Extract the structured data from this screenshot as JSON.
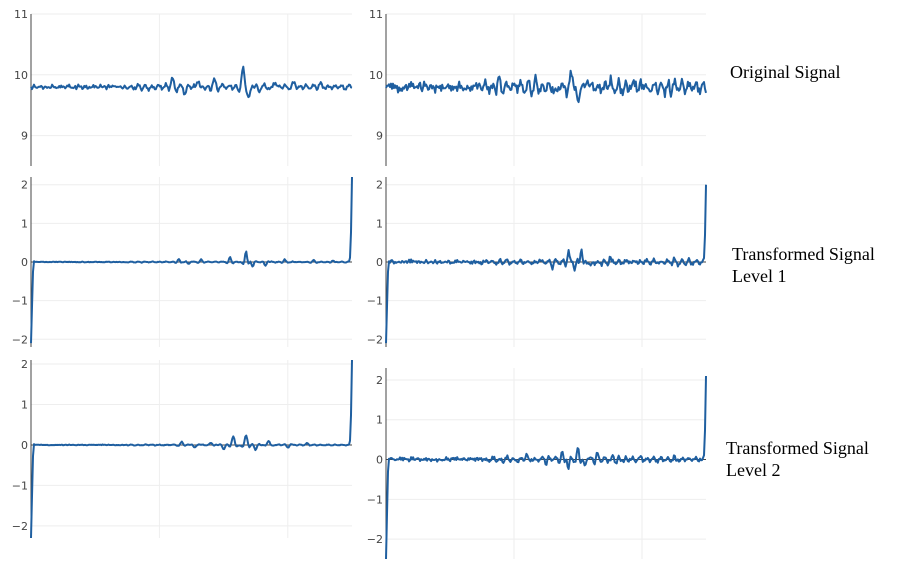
{
  "labels": {
    "row1": [
      "Original Signal"
    ],
    "row2": [
      "Transformed Signal",
      "Level 1"
    ],
    "row3": [
      "Transformed Signal",
      "Level 2"
    ]
  },
  "colors": {
    "series": "#1f5fa0",
    "grid": "#eeeeee",
    "axis": "#444444"
  },
  "chart_data": [
    {
      "id": "orig-left",
      "type": "line",
      "ylim": [
        8.5,
        11
      ],
      "yticks": [
        9,
        10,
        11
      ],
      "grid": true,
      "baseline": 9.8,
      "noise": 0.04,
      "events": [
        [
          0.44,
          0.15,
          0.01
        ],
        [
          0.48,
          -0.1,
          0.01
        ],
        [
          0.52,
          0.1,
          0.01
        ],
        [
          0.57,
          0.12,
          0.01
        ],
        [
          0.66,
          0.3,
          0.012
        ],
        [
          0.68,
          -0.15,
          0.01
        ],
        [
          0.71,
          -0.1,
          0.01
        ],
        [
          0.76,
          0.08,
          0.01
        ],
        [
          0.82,
          0.06,
          0.01
        ],
        [
          0.9,
          0.05,
          0.01
        ]
      ],
      "x": []
    },
    {
      "id": "orig-right",
      "type": "line",
      "ylim": [
        8.5,
        11
      ],
      "yticks": [
        9,
        10,
        11
      ],
      "grid": true,
      "baseline": 9.8,
      "noise": 0.09,
      "events": [
        [
          0.35,
          0.1,
          0.01
        ],
        [
          0.47,
          0.12,
          0.01
        ],
        [
          0.53,
          -0.15,
          0.01
        ],
        [
          0.58,
          0.22,
          0.01
        ],
        [
          0.6,
          -0.25,
          0.01
        ],
        [
          0.63,
          0.15,
          0.01
        ],
        [
          0.7,
          0.12,
          0.01
        ],
        [
          0.78,
          0.08,
          0.01
        ],
        [
          0.9,
          0.06,
          0.01
        ]
      ],
      "x": []
    },
    {
      "id": "lvl1-left",
      "type": "line",
      "ylim": [
        -2.2,
        2.2
      ],
      "yticks": [
        -2,
        -1,
        0,
        1,
        2
      ],
      "grid": true,
      "baseline": 0,
      "noise": 0.01,
      "start": -2.1,
      "end": 2.2,
      "events": [
        [
          0.46,
          0.08,
          0.008
        ],
        [
          0.49,
          -0.06,
          0.008
        ],
        [
          0.53,
          0.06,
          0.008
        ],
        [
          0.62,
          0.12,
          0.008
        ],
        [
          0.67,
          0.28,
          0.008
        ],
        [
          0.69,
          -0.12,
          0.008
        ],
        [
          0.73,
          -0.1,
          0.008
        ],
        [
          0.79,
          0.06,
          0.008
        ],
        [
          0.88,
          0.05,
          0.008
        ],
        [
          0.94,
          0.04,
          0.008
        ]
      ],
      "x": []
    },
    {
      "id": "lvl1-right",
      "type": "line",
      "ylim": [
        -2.2,
        2.2
      ],
      "yticks": [
        -2,
        -1,
        0,
        1,
        2
      ],
      "grid": true,
      "baseline": 0,
      "noise": 0.06,
      "start": -2.1,
      "end": 2.0,
      "events": [
        [
          0.48,
          0.1,
          0.008
        ],
        [
          0.52,
          -0.12,
          0.008
        ],
        [
          0.57,
          0.25,
          0.008
        ],
        [
          0.59,
          -0.2,
          0.008
        ],
        [
          0.61,
          0.32,
          0.008
        ],
        [
          0.64,
          -0.15,
          0.008
        ],
        [
          0.7,
          0.1,
          0.008
        ],
        [
          0.78,
          0.08,
          0.008
        ],
        [
          0.9,
          0.06,
          0.008
        ]
      ],
      "x": []
    },
    {
      "id": "lvl2-left",
      "type": "line",
      "ylim": [
        -2.3,
        2.1
      ],
      "yticks": [
        -2,
        -1,
        0,
        1,
        2
      ],
      "grid": true,
      "baseline": 0,
      "noise": 0.01,
      "start": -2.3,
      "end": 2.1,
      "events": [
        [
          0.47,
          0.08,
          0.01
        ],
        [
          0.51,
          -0.07,
          0.01
        ],
        [
          0.56,
          0.06,
          0.01
        ],
        [
          0.6,
          -0.12,
          0.01
        ],
        [
          0.63,
          0.22,
          0.01
        ],
        [
          0.67,
          0.25,
          0.01
        ],
        [
          0.7,
          -0.12,
          0.01
        ],
        [
          0.74,
          0.1,
          0.01
        ],
        [
          0.8,
          -0.06,
          0.01
        ],
        [
          0.86,
          0.04,
          0.01
        ]
      ],
      "x": []
    },
    {
      "id": "lvl2-right",
      "type": "line",
      "ylim": [
        -2.5,
        2.3
      ],
      "yticks": [
        -2,
        -1,
        0,
        1,
        2
      ],
      "grid": true,
      "baseline": 0,
      "noise": 0.06,
      "start": -2.5,
      "end": 2.1,
      "events": [
        [
          0.44,
          0.1,
          0.008
        ],
        [
          0.5,
          -0.1,
          0.008
        ],
        [
          0.55,
          0.18,
          0.008
        ],
        [
          0.57,
          -0.22,
          0.008
        ],
        [
          0.6,
          0.3,
          0.008
        ],
        [
          0.62,
          -0.2,
          0.008
        ],
        [
          0.66,
          0.15,
          0.008
        ],
        [
          0.71,
          0.12,
          0.008
        ],
        [
          0.8,
          0.06,
          0.008
        ],
        [
          0.9,
          0.06,
          0.008
        ]
      ],
      "x": []
    }
  ]
}
